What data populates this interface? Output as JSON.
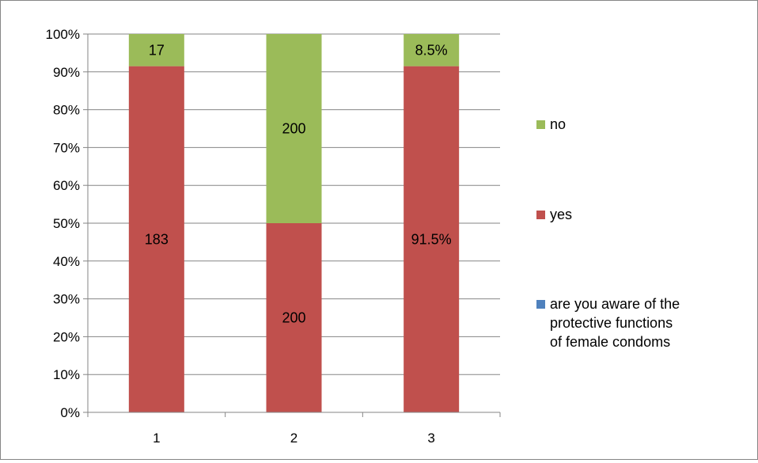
{
  "chart_data": {
    "type": "bar",
    "stacked": "percent",
    "categories": [
      "1",
      "2",
      "3"
    ],
    "series": [
      {
        "name": "are you aware of the protective functions of female condoms",
        "values": [
          0,
          0,
          0
        ],
        "color": "#4f81bd",
        "labels": [
          "",
          "",
          ""
        ]
      },
      {
        "name": "yes",
        "values": [
          183,
          200,
          91.5
        ],
        "color": "#c0504d",
        "labels": [
          "183",
          "200",
          "91.5%"
        ]
      },
      {
        "name": "no",
        "values": [
          17,
          200,
          8.5
        ],
        "color": "#9bbb59",
        "labels": [
          "17",
          "200",
          "8.5%"
        ]
      }
    ],
    "yaxis": {
      "ticks": [
        "0%",
        "10%",
        "20%",
        "30%",
        "40%",
        "50%",
        "60%",
        "70%",
        "80%",
        "90%",
        "100%"
      ],
      "range": [
        0,
        100
      ]
    },
    "grid": true,
    "legend_position": "right",
    "legend": [
      "no",
      "yes",
      "are you aware of the protective functions of female condoms"
    ],
    "title": "",
    "xlabel": "",
    "ylabel": ""
  }
}
